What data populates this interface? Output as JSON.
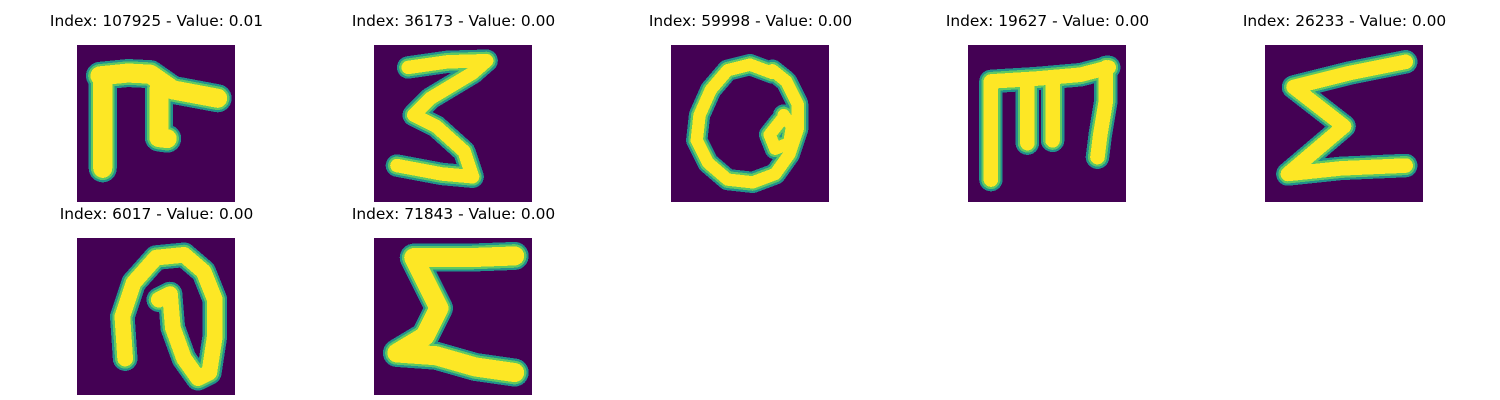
{
  "colors": {
    "background": "#440154",
    "stroke_edge": "#21918c",
    "stroke_mid": "#5ec962",
    "stroke_core": "#fde725"
  },
  "grid": {
    "rows": 2,
    "columns": 5
  },
  "panels": [
    {
      "title": "Index: 107925 - Value: 0.01",
      "glyph": "pi-like-letter-image"
    },
    {
      "title": "Index: 36173 - Value: 0.00",
      "glyph": "three-like-letter-image"
    },
    {
      "title": "Index: 59998 - Value: 0.00",
      "glyph": "looped-a-letter-image"
    },
    {
      "title": "Index: 19627 - Value: 0.00",
      "glyph": "m-like-letter-image"
    },
    {
      "title": "Index: 26233 - Value: 0.00",
      "glyph": "sigma-letter-image"
    },
    {
      "title": "Index: 6017 - Value: 0.00",
      "glyph": "looped-n-letter-image"
    },
    {
      "title": "Index: 71843 - Value: 0.00",
      "glyph": "sigma-letter-image"
    }
  ]
}
